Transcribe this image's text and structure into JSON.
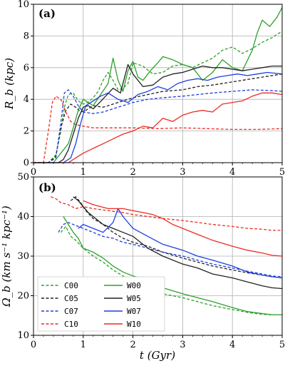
{
  "colors": {
    "green": "#2ca02c",
    "black": "#222222",
    "blue": "#1f3fe0",
    "red": "#ef2a22"
  },
  "legend": {
    "location": "lower-left",
    "entries": [
      {
        "label": "C00",
        "style": "dashed",
        "color": "green"
      },
      {
        "label": "C05",
        "style": "dashed",
        "color": "black"
      },
      {
        "label": "C07",
        "style": "dashed",
        "color": "blue"
      },
      {
        "label": "C10",
        "style": "dashed",
        "color": "red"
      },
      {
        "label": "W00",
        "style": "solid",
        "color": "green"
      },
      {
        "label": "W05",
        "style": "solid",
        "color": "black"
      },
      {
        "label": "W07",
        "style": "solid",
        "color": "blue"
      },
      {
        "label": "W10",
        "style": "solid",
        "color": "red"
      }
    ]
  },
  "chart_data": [
    {
      "type": "line",
      "panel_label": "(a)",
      "ylabel": "R_b (kpc)",
      "xlim": [
        0,
        5
      ],
      "ylim": [
        0,
        10
      ],
      "xticks": [
        "0",
        "1",
        "2",
        "3",
        "4",
        "5"
      ],
      "yticks": [
        "0",
        "2",
        "4",
        "6",
        "8",
        "10"
      ],
      "grid": true,
      "series": [
        {
          "name": "C00",
          "color": "green",
          "dash": true,
          "x": [
            0.0,
            0.3,
            0.45,
            0.55,
            0.62,
            0.7,
            0.8,
            0.9,
            1.0,
            1.1,
            1.2,
            1.3,
            1.4,
            1.5,
            1.6,
            1.7,
            1.8,
            1.9,
            2.0,
            2.2,
            2.4,
            2.6,
            2.8,
            3.0,
            3.2,
            3.4,
            3.6,
            3.8,
            4.0,
            4.2,
            4.4,
            4.6,
            4.8,
            5.0
          ],
          "y": [
            0,
            0,
            0.5,
            2.0,
            3.5,
            4.3,
            4.4,
            3.9,
            3.7,
            3.8,
            4.1,
            4.5,
            5.2,
            5.7,
            5.2,
            4.6,
            4.7,
            5.0,
            6.3,
            6.1,
            5.6,
            5.7,
            6.1,
            6.2,
            6.0,
            6.3,
            6.6,
            7.1,
            7.3,
            6.9,
            7.2,
            7.6,
            7.9,
            8.3
          ]
        },
        {
          "name": "C05",
          "color": "black",
          "dash": true,
          "x": [
            0.0,
            0.3,
            0.45,
            0.55,
            0.65,
            0.75,
            0.85,
            0.95,
            1.05,
            1.2,
            1.4,
            1.6,
            1.8,
            2.0,
            2.3,
            2.6,
            3.0,
            3.3,
            3.6,
            4.0,
            4.4,
            4.8,
            5.0
          ],
          "y": [
            0,
            0,
            0.4,
            2.2,
            3.3,
            3.7,
            3.5,
            3.2,
            3.3,
            3.6,
            3.5,
            3.7,
            3.9,
            4.1,
            4.3,
            4.5,
            4.6,
            4.8,
            4.9,
            5.1,
            5.3,
            5.5,
            5.6
          ]
        },
        {
          "name": "C07",
          "color": "blue",
          "dash": true,
          "x": [
            0.0,
            0.3,
            0.45,
            0.55,
            0.62,
            0.7,
            0.8,
            0.9,
            1.0,
            1.2,
            1.4,
            1.6,
            1.8,
            2.0,
            2.3,
            2.6,
            3.0,
            3.3,
            3.6,
            4.0,
            4.4,
            4.8,
            5.0
          ],
          "y": [
            0,
            0,
            0.3,
            2.5,
            4.4,
            4.6,
            4.2,
            3.6,
            3.2,
            3.1,
            3.2,
            3.4,
            3.6,
            3.8,
            4.0,
            4.1,
            4.2,
            4.3,
            4.4,
            4.5,
            4.6,
            4.55,
            4.5
          ]
        },
        {
          "name": "C10",
          "color": "red",
          "dash": true,
          "x": [
            0.0,
            0.2,
            0.3,
            0.38,
            0.45,
            0.55,
            0.65,
            0.75,
            0.85,
            1.0,
            1.2,
            1.5,
            2.0,
            2.5,
            3.0,
            3.5,
            4.0,
            4.5,
            5.0
          ],
          "y": [
            0,
            0,
            2.0,
            3.8,
            4.2,
            4.0,
            3.2,
            2.6,
            2.4,
            2.3,
            2.2,
            2.2,
            2.2,
            2.15,
            2.2,
            2.15,
            2.1,
            2.1,
            2.15
          ]
        },
        {
          "name": "W00",
          "color": "green",
          "dash": false,
          "x": [
            0.0,
            0.4,
            0.55,
            0.7,
            0.8,
            0.9,
            1.0,
            1.1,
            1.2,
            1.35,
            1.5,
            1.6,
            1.7,
            1.8,
            1.9,
            2.0,
            2.1,
            2.2,
            2.35,
            2.5,
            2.6,
            2.8,
            3.0,
            3.2,
            3.4,
            3.6,
            3.8,
            4.0,
            4.2,
            4.4,
            4.5,
            4.6,
            4.75,
            4.9,
            5.0
          ],
          "y": [
            0,
            0,
            0.6,
            1.2,
            2.2,
            3.3,
            4.0,
            3.8,
            3.6,
            4.3,
            5.0,
            6.6,
            5.2,
            4.5,
            5.8,
            6.4,
            5.4,
            5.2,
            5.8,
            6.3,
            6.7,
            6.5,
            6.2,
            6.0,
            5.2,
            5.7,
            6.5,
            6.0,
            5.8,
            7.1,
            8.2,
            9.0,
            8.6,
            9.2,
            9.8
          ]
        },
        {
          "name": "W05",
          "color": "black",
          "dash": false,
          "x": [
            0.0,
            0.5,
            0.6,
            0.7,
            0.8,
            0.9,
            1.0,
            1.1,
            1.2,
            1.3,
            1.45,
            1.6,
            1.75,
            1.9,
            2.0,
            2.2,
            2.4,
            2.6,
            2.8,
            3.0,
            3.2,
            3.4,
            3.6,
            3.8,
            4.0,
            4.2,
            4.4,
            4.6,
            4.8,
            5.0
          ],
          "y": [
            0,
            0,
            0.2,
            0.8,
            1.8,
            2.8,
            3.5,
            3.6,
            3.4,
            3.7,
            4.2,
            4.7,
            4.4,
            6.2,
            5.6,
            4.8,
            4.9,
            5.4,
            5.6,
            5.7,
            5.9,
            6.1,
            6.0,
            6.0,
            5.9,
            5.8,
            5.9,
            6.0,
            6.1,
            6.1
          ]
        },
        {
          "name": "W07",
          "color": "blue",
          "dash": false,
          "x": [
            0.0,
            0.6,
            0.75,
            0.85,
            0.95,
            1.05,
            1.2,
            1.35,
            1.5,
            1.7,
            1.9,
            2.1,
            2.3,
            2.5,
            2.7,
            2.9,
            3.1,
            3.3,
            3.5,
            3.7,
            3.9,
            4.1,
            4.3,
            4.5,
            4.7,
            5.0
          ],
          "y": [
            0,
            0,
            0.3,
            1.2,
            2.5,
            3.6,
            3.9,
            4.2,
            4.4,
            4.0,
            3.8,
            4.3,
            4.5,
            4.8,
            4.6,
            5.0,
            5.2,
            5.3,
            5.2,
            5.4,
            5.5,
            5.6,
            5.5,
            5.6,
            5.7,
            5.6
          ]
        },
        {
          "name": "W10",
          "color": "red",
          "dash": false,
          "x": [
            0.0,
            0.7,
            0.85,
            1.0,
            1.2,
            1.4,
            1.6,
            1.8,
            2.0,
            2.2,
            2.4,
            2.6,
            2.8,
            3.0,
            3.2,
            3.4,
            3.6,
            3.8,
            4.0,
            4.2,
            4.4,
            4.6,
            4.8,
            5.0
          ],
          "y": [
            0,
            0,
            0.3,
            0.6,
            0.9,
            1.2,
            1.5,
            1.8,
            2.0,
            2.3,
            2.2,
            2.8,
            2.6,
            3.0,
            3.2,
            3.3,
            3.2,
            3.7,
            3.8,
            3.9,
            4.2,
            4.4,
            4.4,
            4.3
          ]
        }
      ]
    },
    {
      "type": "line",
      "panel_label": "(b)",
      "ylabel": "Ω_b (km s⁻¹ kpc⁻¹)",
      "xlabel": "t (Gyr)",
      "xlim": [
        0,
        5
      ],
      "ylim": [
        10,
        50
      ],
      "xticks": [
        "0",
        "1",
        "2",
        "3",
        "4",
        "5"
      ],
      "yticks": [
        "10",
        "20",
        "30",
        "40",
        "50"
      ],
      "grid": true,
      "series": [
        {
          "name": "C00",
          "color": "green",
          "dash": true,
          "x": [
            0.55,
            0.65,
            0.75,
            0.85,
            1.0,
            1.2,
            1.4,
            1.6,
            1.8,
            2.0,
            2.3,
            2.6,
            3.0,
            3.3,
            3.6,
            4.0,
            4.3,
            4.6,
            4.8,
            5.0
          ],
          "y": [
            36,
            37.5,
            35,
            34,
            32,
            30,
            28.5,
            26.5,
            25,
            23.5,
            22,
            20.5,
            19.5,
            18.5,
            17.5,
            16.5,
            15.8,
            15.3,
            15.2,
            15.2
          ]
        },
        {
          "name": "C05",
          "color": "black",
          "dash": true,
          "x": [
            0.75,
            0.85,
            0.95,
            1.05,
            1.2,
            1.4,
            1.6,
            1.8,
            2.0,
            2.3,
            2.6,
            3.0,
            3.3,
            3.6,
            4.0,
            4.3,
            4.6,
            4.8,
            5.0
          ],
          "y": [
            44,
            45,
            43.5,
            41.5,
            39.5,
            38,
            36,
            34.5,
            33.5,
            32.5,
            31,
            29.5,
            28.5,
            27.5,
            26.5,
            25.8,
            25.2,
            24.8,
            24.5
          ]
        },
        {
          "name": "C07",
          "color": "blue",
          "dash": true,
          "x": [
            0.5,
            0.6,
            0.7,
            0.8,
            0.9,
            1.0,
            1.2,
            1.4,
            1.6,
            1.8,
            2.0,
            2.3,
            2.6,
            3.0,
            3.3,
            3.6,
            4.0,
            4.3,
            4.6,
            4.8,
            5.0
          ],
          "y": [
            36,
            38,
            38.5,
            38,
            37.5,
            37,
            36,
            35,
            34.5,
            33.5,
            33,
            32,
            31,
            30,
            29,
            28,
            27,
            26.2,
            25.5,
            25,
            24.8
          ]
        },
        {
          "name": "C10",
          "color": "red",
          "dash": true,
          "x": [
            0.35,
            0.45,
            0.55,
            0.7,
            0.85,
            1.0,
            1.2,
            1.5,
            1.8,
            2.0,
            2.3,
            2.6,
            3.0,
            3.3,
            3.6,
            4.0,
            4.3,
            4.6,
            4.8,
            5.0
          ],
          "y": [
            45,
            44.5,
            43.5,
            43,
            42,
            42.5,
            42,
            41.5,
            41,
            40.5,
            40,
            39.5,
            39,
            38.5,
            38,
            37.5,
            37,
            36.8,
            36.5,
            36.5
          ]
        },
        {
          "name": "W00",
          "color": "green",
          "dash": false,
          "x": [
            0.6,
            0.7,
            0.8,
            0.9,
            1.0,
            1.2,
            1.4,
            1.6,
            1.8,
            2.0,
            2.3,
            2.6,
            3.0,
            3.3,
            3.6,
            4.0,
            4.3,
            4.6,
            4.8,
            5.0
          ],
          "y": [
            40,
            38,
            36,
            34.5,
            32,
            31,
            29.5,
            27.5,
            26,
            25,
            24,
            22,
            20.5,
            19.5,
            18.5,
            17,
            16,
            15.5,
            15.2,
            15.2
          ]
        },
        {
          "name": "W05",
          "color": "black",
          "dash": false,
          "x": [
            0.8,
            0.9,
            1.0,
            1.1,
            1.2,
            1.4,
            1.6,
            1.8,
            2.0,
            2.3,
            2.6,
            3.0,
            3.3,
            3.6,
            4.0,
            4.3,
            4.6,
            4.8,
            5.0
          ],
          "y": [
            45,
            44,
            42.5,
            41,
            40,
            38,
            37,
            36,
            35,
            32,
            30,
            28,
            27,
            25.5,
            24.5,
            23.5,
            22.5,
            22,
            21.8
          ]
        },
        {
          "name": "W07",
          "color": "blue",
          "dash": false,
          "x": [
            0.9,
            1.0,
            1.1,
            1.2,
            1.4,
            1.6,
            1.7,
            1.8,
            2.0,
            2.3,
            2.6,
            3.0,
            3.3,
            3.6,
            4.0,
            4.3,
            4.6,
            4.8,
            5.0
          ],
          "y": [
            37,
            38,
            37.5,
            37,
            36,
            38.5,
            42,
            40,
            37,
            35,
            33,
            31.5,
            30,
            29,
            27.5,
            26,
            25.2,
            24.8,
            24.5
          ]
        },
        {
          "name": "W10",
          "color": "red",
          "dash": false,
          "x": [
            1.0,
            1.2,
            1.5,
            1.8,
            2.0,
            2.2,
            2.4,
            2.6,
            2.8,
            3.0,
            3.3,
            3.6,
            4.0,
            4.3,
            4.6,
            4.8,
            5.0
          ],
          "y": [
            44,
            43,
            42,
            42,
            41.5,
            41,
            40.5,
            39.5,
            38,
            37,
            35.5,
            34,
            32.5,
            31.5,
            30.8,
            30.2,
            30
          ]
        }
      ]
    }
  ]
}
